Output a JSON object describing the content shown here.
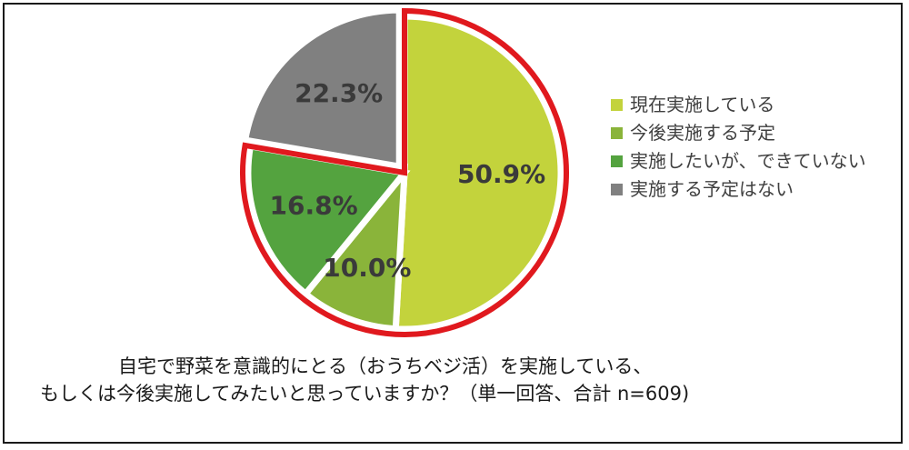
{
  "caption": {
    "line1": "自宅で野菜を意識的にとる（おうちベジ活）を実施している、",
    "line2": "もしくは今後実施してみたいと思っていますか？（単一回答、合計 n=609)"
  },
  "chart_data": {
    "type": "pie",
    "title": "",
    "categories": [
      "現在実施している",
      "今後実施する予定",
      "実施したいが、できていない",
      "実施する予定はない"
    ],
    "values": [
      50.9,
      10.0,
      16.8,
      22.3
    ],
    "labels": [
      "50.9%",
      "10.0%",
      "16.8%",
      "22.3%"
    ],
    "colors": [
      "#c3d33c",
      "#8ab43a",
      "#54a33f",
      "#808080"
    ],
    "highlight_color": "#e0191e",
    "highlighted_slices": [
      "現在実施している",
      "今後実施する予定",
      "実施したいが、できていない"
    ],
    "exploded_slice": "実施する予定はない",
    "legend_position": "right",
    "start": "12 o'clock",
    "direction": "clockwise"
  }
}
